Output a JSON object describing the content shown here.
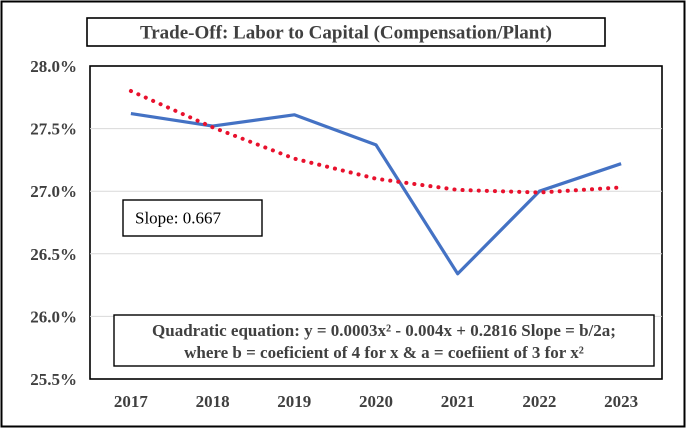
{
  "chart_data": {
    "type": "line",
    "title": "Trade-Off: Labor to Capital (Compensation/Plant)",
    "xlabel": "",
    "ylabel": "",
    "categories": [
      "2017",
      "2018",
      "2019",
      "2020",
      "2021",
      "2022",
      "2023"
    ],
    "y_ticks": [
      "25.5%",
      "26.0%",
      "26.5%",
      "27.0%",
      "27.5%",
      "28.0%"
    ],
    "y_tick_values": [
      25.5,
      26.0,
      26.5,
      27.0,
      27.5,
      28.0
    ],
    "ylim": [
      25.5,
      28.0
    ],
    "grid": true,
    "series": [
      {
        "values": [
          27.62,
          27.52,
          27.61,
          27.37,
          26.34,
          27.0,
          27.22
        ],
        "color": "#4472c4",
        "style": "solid"
      },
      {
        "values": [
          27.8,
          27.51,
          27.26,
          27.1,
          27.01,
          26.99,
          27.03
        ],
        "color": "#e8112d",
        "style": "dotted"
      }
    ],
    "annotations": {
      "slope": "Slope: 0.667",
      "equation_line1": "Quadratic equation: y = 0.0003x² - 0.004x + 0.2816 Slope = b/2a;",
      "equation_line2": "where b = coeficient of 4 for x & a =  coefiient of 3 for x²"
    }
  }
}
